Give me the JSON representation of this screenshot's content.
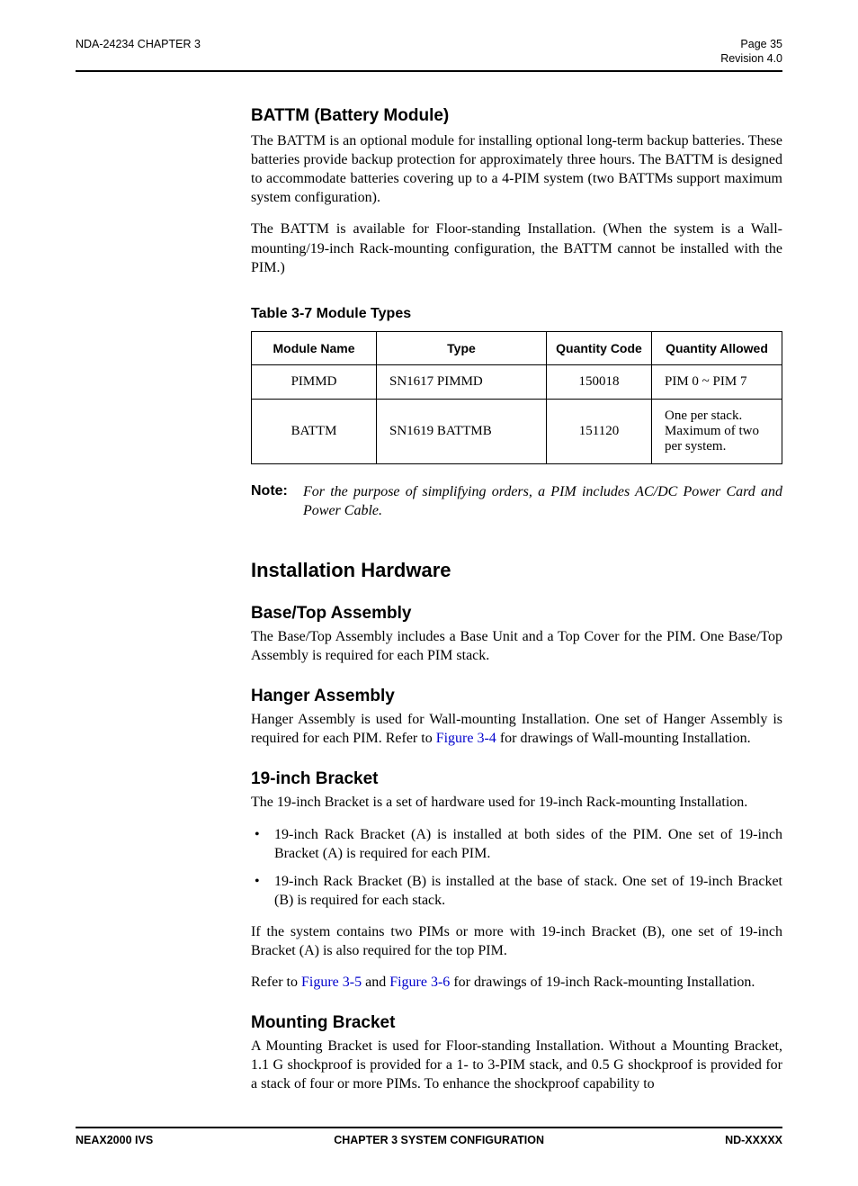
{
  "header": {
    "left": "NDA-24234 CHAPTER 3",
    "right": "Page 35",
    "sub_right": "Revision 4.0"
  },
  "sections": {
    "battm_title": "BATTM (Battery Module)",
    "battm_p1": "The BATTM is an optional module for installing optional long-term backup batteries. These batteries provide backup protection for approximately three hours. The BATTM is designed to accommodate batteries covering up to a 4-PIM system (two BATTMs support maximum system configuration).",
    "battm_p2": "The BATTM is available for Floor-standing Installation. (When the system is a Wall-mounting/19-inch Rack-mounting configuration, the BATTM cannot be installed with the PIM.)"
  },
  "table": {
    "title": "Table 3-7  Module Types",
    "columns": [
      "Module Name",
      "Type",
      "Quantity Code",
      "Quantity Allowed"
    ],
    "rows": [
      {
        "c1": "PIMMD",
        "c2": "SN1617 PIMMD",
        "c3": "150018",
        "c4": "PIM 0 ~ PIM 7"
      },
      {
        "c1": "BATTM",
        "c2": "SN1619 BATTMB",
        "c3": "151120",
        "c4": "One per stack.\nMaximum of two per system."
      }
    ]
  },
  "note": {
    "label": "Note:",
    "text": "For the purpose of simplifying orders, a PIM includes AC/DC Power Card and Power Cable."
  },
  "install": {
    "title": "Installation Hardware",
    "base_title": "Base/Top Assembly",
    "base_p": "The Base/Top Assembly includes a Base Unit and a Top Cover for the PIM. One Base/Top Assembly is required for each PIM stack.",
    "hanger_title": "Hanger Assembly",
    "hanger_p_a": "Hanger Assembly is used for Wall-mounting Installation. One set of Hanger Assembly is required for each PIM. Refer to ",
    "hanger_link": "Figure 3-4",
    "hanger_p_b": " for drawings of Wall-mounting Installation.",
    "bracket19_title": "19-inch Bracket",
    "bracket19_p": "The 19-inch Bracket is a set of hardware used for 19-inch Rack-mounting Installation.",
    "bullets": [
      "19-inch Rack Bracket (A) is installed at both sides of the PIM. One set of 19-inch Bracket (A) is required for each PIM.",
      "19-inch Rack Bracket (B) is installed at the base of stack. One set of 19-inch Bracket (B) is required for each stack."
    ],
    "bracket19_p2": "If the system contains two PIMs or more with 19-inch Bracket (B), one set of 19-inch Bracket (A) is also required for the top PIM.",
    "refer_a": "Refer to ",
    "refer_link1": "Figure 3-5",
    "refer_mid": " and ",
    "refer_link2": "Figure 3-6",
    "refer_b": " for drawings of 19-inch Rack-mounting Installation.",
    "mount_title": "Mounting Bracket",
    "mount_p": "A Mounting Bracket is used for Floor-standing Installation. Without a Mounting Bracket, 1.1 G shockproof is provided for a 1- to 3-PIM stack, and 0.5 G shockproof is provided for a stack of four or more PIMs. To enhance the shockproof capability to"
  },
  "footer": {
    "left": "NEAX2000 IVS",
    "center": "CHAPTER 3  SYSTEM CONFIGURATION",
    "right": "ND-XXXXX"
  }
}
